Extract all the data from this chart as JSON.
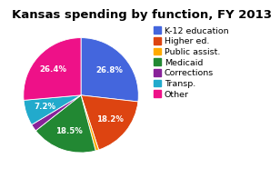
{
  "title": "Kansas spending by function, FY 2013",
  "labels": [
    "K-12 education",
    "Higher ed.",
    "Public assist.",
    "Medicaid",
    "Corrections",
    "Transp.",
    "Other"
  ],
  "values": [
    26.8,
    18.2,
    0.9,
    18.5,
    2.0,
    7.2,
    26.4
  ],
  "colors": [
    "#4466dd",
    "#dd4411",
    "#ffaa00",
    "#228833",
    "#882299",
    "#22aacc",
    "#ee1188"
  ],
  "pct_labels": [
    "26.8%",
    "18.2%",
    "",
    "18.5%",
    "",
    "7.2%",
    "26.4%"
  ],
  "title_fontsize": 9.5,
  "legend_fontsize": 6.8,
  "background_color": "#ffffff"
}
